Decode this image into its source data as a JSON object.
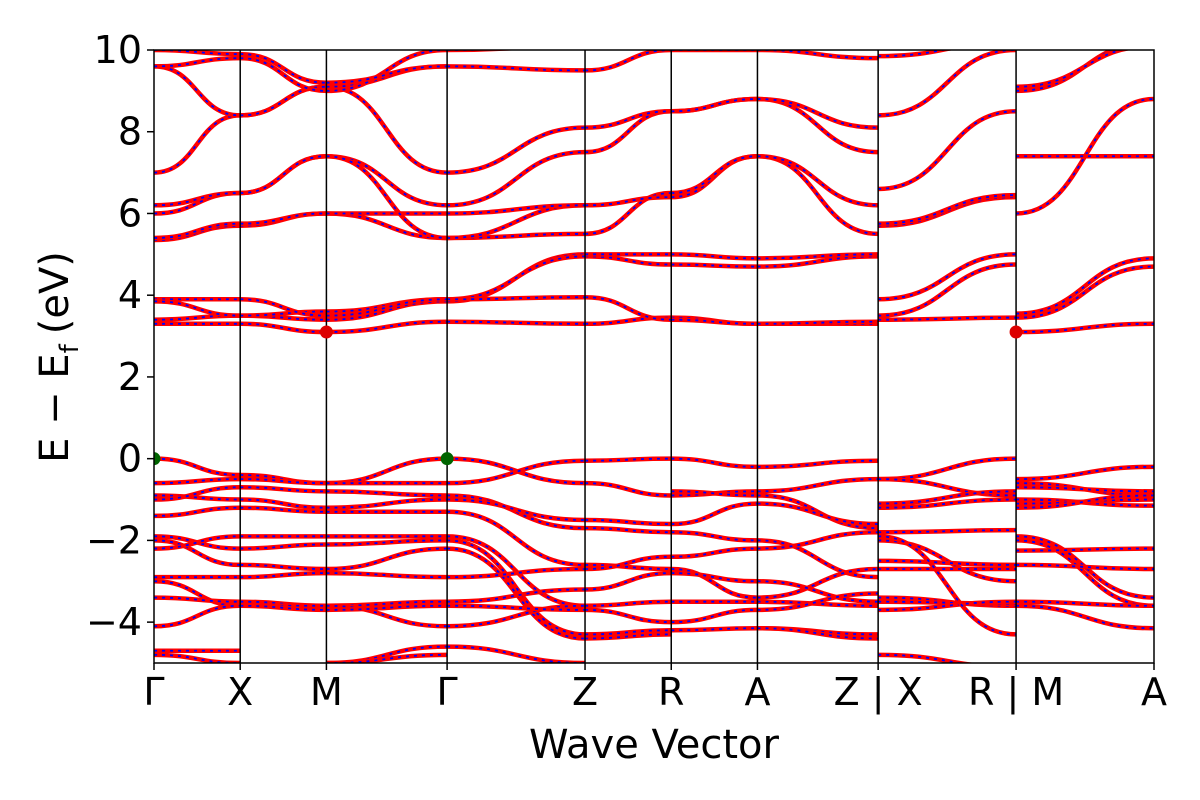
{
  "chart_data": {
    "type": "line",
    "title": "",
    "xlabel": "Wave Vector",
    "ylabel": "E − E",
    "ylabel_subscript": "f",
    "ylabel_unit": "(eV)",
    "ylim": [
      -5,
      10
    ],
    "yticks": [
      -4,
      -2,
      0,
      2,
      4,
      6,
      8,
      10
    ],
    "ytick_labels": [
      "−4",
      "−2",
      "0",
      "2",
      "4",
      "6",
      "8",
      "10"
    ],
    "xlim": [
      0,
      11.6
    ],
    "kpoints": [
      {
        "label": "Γ",
        "x": 0
      },
      {
        "label": "X",
        "x": 1.0
      },
      {
        "label": "M",
        "x": 2.0
      },
      {
        "label": "Γ",
        "x": 3.4
      },
      {
        "label": "Z",
        "x": 5.0
      },
      {
        "label": "R",
        "x": 6.0
      },
      {
        "label": "A",
        "x": 7.0
      },
      {
        "label": "Z | X",
        "x": 8.4
      },
      {
        "label": "R | M",
        "x": 10.0
      },
      {
        "label": "A",
        "x": 11.6
      }
    ],
    "series_style": {
      "primary_color": "#ff0000",
      "overlay_color": "#0000ff",
      "overlay_dashed": true
    },
    "markers": [
      {
        "name": "VBM",
        "x": 0,
        "y": 0,
        "color": "#006400"
      },
      {
        "name": "VBM",
        "x": 3.4,
        "y": 0,
        "color": "#006400"
      },
      {
        "name": "CBM",
        "x": 2.0,
        "y": 3.1,
        "color": "#dd0000"
      },
      {
        "name": "CBM",
        "x": 10.0,
        "y": 3.1,
        "color": "#dd0000"
      }
    ],
    "segments": [
      {
        "x0": 0,
        "x1": 1.0,
        "bands": [
          [
            -0.6,
            -0.5
          ],
          [
            0.0,
            -0.4
          ],
          [
            -0.9,
            -1.0
          ],
          [
            -1.0,
            -0.7
          ],
          [
            -1.4,
            -1.2
          ],
          [
            -1.9,
            -2.2
          ],
          [
            -2.0,
            -2.6
          ],
          [
            -2.2,
            -1.9
          ],
          [
            -2.9,
            -2.9
          ],
          [
            -3.0,
            -3.6
          ],
          [
            -3.4,
            -3.5
          ],
          [
            -4.1,
            -3.6
          ],
          [
            -4.7,
            -4.7
          ],
          [
            -4.8,
            -5.0
          ],
          [
            3.4,
            3.5
          ],
          [
            3.3,
            3.3
          ],
          [
            3.9,
            3.9
          ],
          [
            3.85,
            3.5
          ],
          [
            5.35,
            5.7
          ],
          [
            5.4,
            5.75
          ],
          [
            6.0,
            6.5
          ],
          [
            6.2,
            6.5
          ],
          [
            7.0,
            8.4
          ],
          [
            9.6,
            8.4
          ],
          [
            9.6,
            9.8
          ],
          [
            10.0,
            9.9
          ]
        ]
      },
      {
        "x0": 1.0,
        "x1": 2.0,
        "bands": [
          [
            -0.4,
            -0.6
          ],
          [
            -0.5,
            -0.6
          ],
          [
            -0.7,
            -0.8
          ],
          [
            -1.0,
            -1.2
          ],
          [
            -1.2,
            -1.3
          ],
          [
            -1.9,
            -1.9
          ],
          [
            -2.2,
            -2.1
          ],
          [
            -2.6,
            -2.7
          ],
          [
            -2.9,
            -2.8
          ],
          [
            -3.5,
            -3.6
          ],
          [
            -3.6,
            -3.6
          ],
          [
            -3.6,
            -3.7
          ],
          [
            3.3,
            3.1
          ],
          [
            3.5,
            3.4
          ],
          [
            3.5,
            3.6
          ],
          [
            3.9,
            3.5
          ],
          [
            5.7,
            6.0
          ],
          [
            5.75,
            6.0
          ],
          [
            6.5,
            7.4
          ],
          [
            6.5,
            7.4
          ],
          [
            8.4,
            9.1
          ],
          [
            8.4,
            9.1
          ],
          [
            9.8,
            9.0
          ],
          [
            9.9,
            9.2
          ]
        ]
      },
      {
        "x0": 2.0,
        "x1": 3.4,
        "bands": [
          [
            -0.6,
            0.0
          ],
          [
            -0.6,
            -0.6
          ],
          [
            -0.8,
            -0.9
          ],
          [
            -1.2,
            -1.0
          ],
          [
            -1.3,
            -1.3
          ],
          [
            -1.9,
            -1.9
          ],
          [
            -2.1,
            -2.0
          ],
          [
            -2.7,
            -2.2
          ],
          [
            -2.8,
            -2.9
          ],
          [
            -3.6,
            -3.5
          ],
          [
            -3.6,
            -4.1
          ],
          [
            -3.7,
            -3.6
          ],
          [
            -5.0,
            -4.6
          ],
          [
            -5.0,
            -4.8
          ],
          [
            3.1,
            3.35
          ],
          [
            3.4,
            3.85
          ],
          [
            3.6,
            3.9
          ],
          [
            3.5,
            3.9
          ],
          [
            6.0,
            5.4
          ],
          [
            6.0,
            6.0
          ],
          [
            7.4,
            6.2
          ],
          [
            7.4,
            5.4
          ],
          [
            9.1,
            7.0
          ],
          [
            9.1,
            9.6
          ],
          [
            9.0,
            10.0
          ],
          [
            9.2,
            9.6
          ]
        ]
      },
      {
        "x0": 3.4,
        "x1": 5.0,
        "bands": [
          [
            0.0,
            -0.6
          ],
          [
            -0.6,
            -0.05
          ],
          [
            -0.9,
            -1.7
          ],
          [
            -1.0,
            -1.5
          ],
          [
            -1.3,
            -2.6
          ],
          [
            -1.9,
            -3.6
          ],
          [
            -2.0,
            -4.3
          ],
          [
            -2.2,
            -4.4
          ],
          [
            -2.9,
            -2.7
          ],
          [
            -3.5,
            -3.2
          ],
          [
            -4.1,
            -3.6
          ],
          [
            -3.6,
            -3.7
          ],
          [
            -4.6,
            -5.0
          ],
          [
            3.35,
            3.3
          ],
          [
            3.85,
            5.0
          ],
          [
            3.9,
            4.95
          ],
          [
            3.9,
            3.95
          ],
          [
            5.4,
            5.5
          ],
          [
            5.4,
            6.2
          ],
          [
            6.0,
            6.2
          ],
          [
            6.2,
            7.5
          ],
          [
            7.0,
            8.1
          ],
          [
            9.6,
            9.5
          ],
          [
            10.0,
            10.1
          ]
        ]
      },
      {
        "x0": 5.0,
        "x1": 6.0,
        "bands": [
          [
            -0.05,
            0.0
          ],
          [
            -0.6,
            -0.9
          ],
          [
            -1.5,
            -1.6
          ],
          [
            -1.7,
            -1.8
          ],
          [
            -2.6,
            -2.7
          ],
          [
            -2.7,
            -2.4
          ],
          [
            -3.2,
            -2.8
          ],
          [
            -3.6,
            -3.5
          ],
          [
            -3.7,
            -4.0
          ],
          [
            -4.3,
            -4.2
          ],
          [
            -4.4,
            -4.3
          ],
          [
            3.3,
            3.45
          ],
          [
            3.95,
            3.4
          ],
          [
            4.95,
            4.75
          ],
          [
            5.0,
            5.0
          ],
          [
            5.5,
            6.5
          ],
          [
            6.2,
            6.4
          ],
          [
            7.5,
            8.5
          ],
          [
            8.1,
            8.5
          ],
          [
            9.5,
            10.0
          ]
        ]
      },
      {
        "x0": 6.0,
        "x1": 7.0,
        "bands": [
          [
            0.0,
            -0.2
          ],
          [
            -0.9,
            -0.8
          ],
          [
            -0.8,
            -0.9
          ],
          [
            -1.6,
            -1.1
          ],
          [
            -1.8,
            -2.0
          ],
          [
            -2.4,
            -2.2
          ],
          [
            -2.7,
            -3.4
          ],
          [
            -2.8,
            -3.0
          ],
          [
            -3.5,
            -3.5
          ],
          [
            -4.0,
            -3.7
          ],
          [
            -4.2,
            -4.15
          ],
          [
            3.45,
            3.3
          ],
          [
            3.4,
            3.3
          ],
          [
            4.75,
            4.7
          ],
          [
            5.0,
            4.9
          ],
          [
            6.4,
            7.4
          ],
          [
            6.5,
            7.4
          ],
          [
            8.5,
            8.8
          ],
          [
            8.5,
            8.8
          ],
          [
            10.0,
            10.0
          ]
        ]
      },
      {
        "x0": 7.0,
        "x1": 8.4,
        "bands": [
          [
            -0.2,
            -0.05
          ],
          [
            -0.8,
            -0.5
          ],
          [
            -0.9,
            -1.7
          ],
          [
            -1.1,
            -1.6
          ],
          [
            -2.0,
            -2.9
          ],
          [
            -2.2,
            -1.8
          ],
          [
            -3.4,
            -2.7
          ],
          [
            -3.0,
            -3.5
          ],
          [
            -3.5,
            -3.6
          ],
          [
            -3.7,
            -3.3
          ],
          [
            -4.15,
            -4.3
          ],
          [
            -4.15,
            -4.4
          ],
          [
            3.3,
            3.3
          ],
          [
            3.3,
            3.35
          ],
          [
            4.7,
            4.95
          ],
          [
            4.9,
            5.0
          ],
          [
            7.4,
            5.5
          ],
          [
            7.4,
            6.2
          ],
          [
            8.8,
            7.5
          ],
          [
            8.8,
            8.1
          ],
          [
            10.0,
            9.8
          ]
        ]
      },
      {
        "x0": 8.4,
        "x1": 10.0,
        "bands": [
          [
            -0.5,
            0.0
          ],
          [
            -0.5,
            -0.9
          ],
          [
            -1.2,
            -1.0
          ],
          [
            -1.1,
            -0.8
          ],
          [
            -1.8,
            -1.75
          ],
          [
            -2.0,
            -3.0
          ],
          [
            -2.5,
            -2.6
          ],
          [
            -2.7,
            -2.7
          ],
          [
            -3.4,
            -3.6
          ],
          [
            -3.5,
            -3.55
          ],
          [
            -3.7,
            -3.5
          ],
          [
            -1.9,
            -4.3
          ],
          [
            -4.8,
            -5.1
          ],
          [
            3.4,
            3.45
          ],
          [
            3.5,
            4.75
          ],
          [
            3.9,
            5.0
          ],
          [
            5.7,
            6.4
          ],
          [
            5.75,
            6.45
          ],
          [
            6.6,
            8.5
          ],
          [
            8.4,
            10.0
          ],
          [
            9.85,
            10.2
          ]
        ]
      },
      {
        "x0": 10.0,
        "x1": 11.6,
        "bands": [
          [
            -0.5,
            -0.2
          ],
          [
            -0.6,
            -0.9
          ],
          [
            -0.7,
            -0.8
          ],
          [
            -1.0,
            -1.15
          ],
          [
            -1.1,
            -1.0
          ],
          [
            -1.2,
            -0.9
          ],
          [
            -1.9,
            -3.4
          ],
          [
            -2.0,
            -3.6
          ],
          [
            -2.25,
            -2.2
          ],
          [
            -2.6,
            -2.7
          ],
          [
            -3.5,
            -3.6
          ],
          [
            -3.6,
            -4.15
          ],
          [
            3.1,
            3.3
          ],
          [
            3.45,
            4.7
          ],
          [
            3.55,
            4.9
          ],
          [
            6.0,
            8.8
          ],
          [
            7.4,
            7.4
          ],
          [
            9.0,
            10.2
          ],
          [
            9.1,
            10.1
          ]
        ]
      }
    ]
  }
}
